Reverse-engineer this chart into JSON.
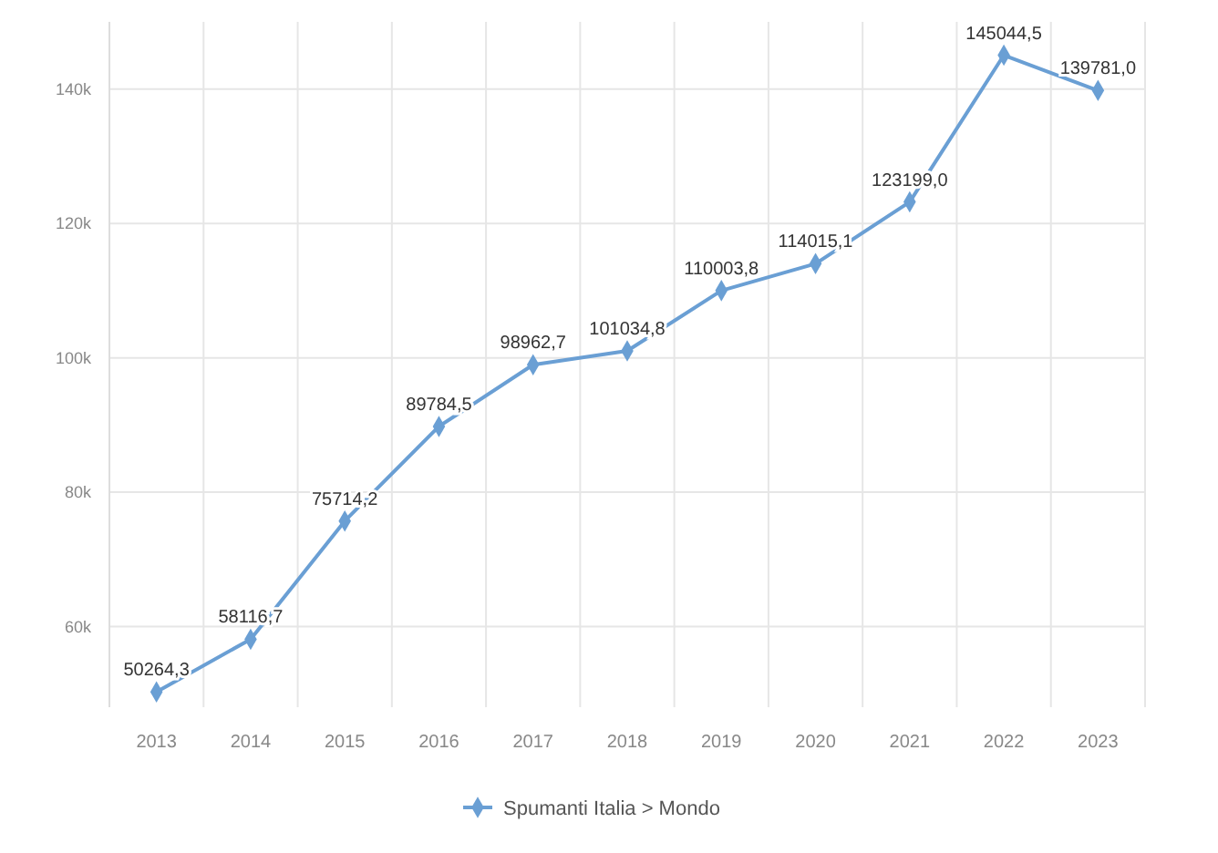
{
  "chart_data": {
    "type": "line",
    "categories": [
      "2013",
      "2014",
      "2015",
      "2016",
      "2017",
      "2018",
      "2019",
      "2020",
      "2021",
      "2022",
      "2023"
    ],
    "series": [
      {
        "name": "Spumanti Italia > Mondo",
        "color": "#6a9fd4",
        "values": [
          50264.3,
          58116.7,
          75714.2,
          89784.5,
          98962.7,
          101034.8,
          110003.8,
          114015.1,
          123199.0,
          145044.5,
          139781.0
        ],
        "value_labels": [
          "50264,3",
          "58116,7",
          "75714,2",
          "89784,5",
          "98962,7",
          "101034,8",
          "110003,8",
          "114015,1",
          "123199,0",
          "145044,5",
          "139781,0"
        ]
      }
    ],
    "ylim": [
      48000,
      150000
    ],
    "yticks": [
      {
        "value": 60000,
        "label": "60k"
      },
      {
        "value": 80000,
        "label": "80k"
      },
      {
        "value": 100000,
        "label": "100k"
      },
      {
        "value": 120000,
        "label": "120k"
      },
      {
        "value": 140000,
        "label": "140k"
      }
    ],
    "grid": true,
    "legend": "bottom",
    "marker": "diamond",
    "line_style": "solid"
  }
}
